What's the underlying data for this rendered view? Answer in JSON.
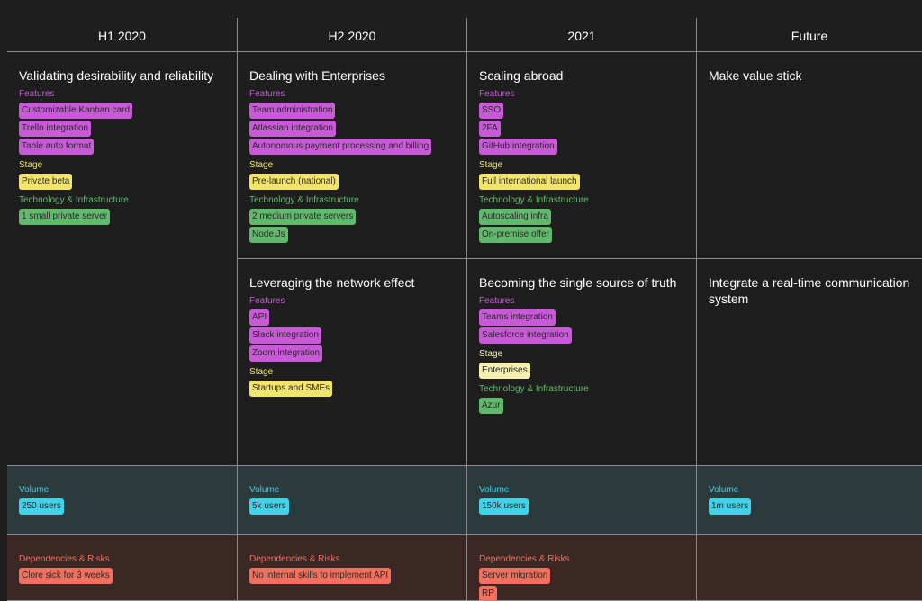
{
  "columns": [
    {
      "heading": "H1 2020",
      "cards": [
        {
          "title": "Validating desirability and reliability",
          "groups": [
            {
              "label": "Features",
              "color": "#c85ad8",
              "tags": [
                "Customizable Kanban card",
                "Trello integration",
                "Table auto format"
              ]
            },
            {
              "label": "Stage",
              "color": "#f3e46c",
              "tags": [
                "Private beta"
              ]
            },
            {
              "label": "Technology & Infrastructure",
              "color": "#62b86c",
              "tags": [
                "1 small private server"
              ]
            }
          ]
        }
      ]
    },
    {
      "heading": "H2 2020",
      "cards": [
        {
          "title": "Dealing with Enterprises",
          "groups": [
            {
              "label": "Features",
              "color": "#c85ad8",
              "tags": [
                "Team administration",
                "Atlassian integration",
                "Autonomous payment processing and billing"
              ]
            },
            {
              "label": "Stage",
              "color": "#f3e46c",
              "tags": [
                "Pre-launch (national)"
              ]
            },
            {
              "label": "Technology & Infrastructure",
              "color": "#62b86c",
              "tags": [
                "2 medium private servers",
                "Node.Js"
              ]
            }
          ]
        },
        {
          "title": "Leveraging the network effect",
          "groups": [
            {
              "label": "Features",
              "color": "#c85ad8",
              "tags": [
                "API",
                "Slack integration",
                "Zoom integration"
              ]
            },
            {
              "label": "Stage",
              "color": "#f3e46c",
              "tags": [
                "Startups and SMEs"
              ]
            }
          ]
        }
      ]
    },
    {
      "heading": "2021",
      "cards": [
        {
          "title": "Scaling abroad",
          "groups": [
            {
              "label": "Features",
              "color": "#c85ad8",
              "tags": [
                "SSO",
                "2FA",
                "GitHub integration"
              ]
            },
            {
              "label": "Stage",
              "color": "#f3e46c",
              "tags": [
                "Full international launch"
              ]
            },
            {
              "label": "Technology & Infrastructure",
              "color": "#62b86c",
              "tags": [
                "Autoscaling infra",
                "On-premise offer"
              ]
            }
          ]
        },
        {
          "title": "Becoming the single source of truth",
          "groups": [
            {
              "label": "Features",
              "color": "#c85ad8",
              "tags": [
                "Teams integration",
                "Salesforce integration"
              ]
            },
            {
              "label": "Stage",
              "color": "#f6f1ae",
              "tags": [
                "Enterprises"
              ]
            },
            {
              "label": "Technology & Infrastructure",
              "color": "#62b86c",
              "tags": [
                "Azur"
              ]
            }
          ]
        }
      ]
    },
    {
      "heading": "Future",
      "cards": [
        {
          "title": "Make value stick",
          "groups": []
        },
        {
          "title": "Integrate a real-time communication system",
          "groups": []
        }
      ]
    }
  ],
  "footer_rows": [
    {
      "label": "Volume",
      "color": "#3fd3ea",
      "background": "#2b3a3c",
      "cells": [
        [
          "250 users"
        ],
        [
          "5k users"
        ],
        [
          "150k users"
        ],
        [
          "1m users"
        ]
      ]
    },
    {
      "label": "Dependencies & Risks",
      "color": "#f2705f",
      "background": "#3b2825",
      "cells": [
        [
          "Clore sick for 3 weeks"
        ],
        [
          "No internal skills to implement API"
        ],
        [
          "Server migration",
          "RP"
        ],
        []
      ]
    }
  ]
}
